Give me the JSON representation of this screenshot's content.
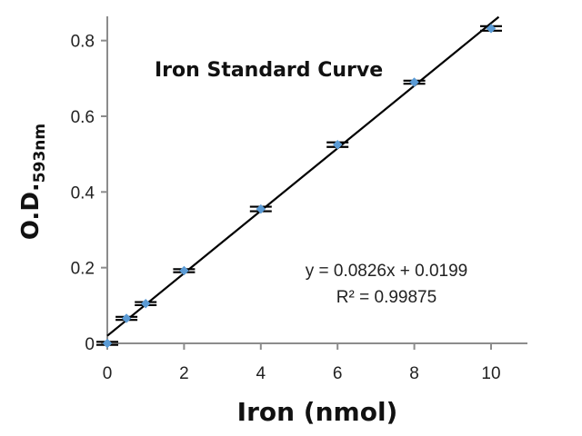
{
  "chart_data": {
    "type": "scatter",
    "title": "Iron Standard Curve",
    "xlabel": "Iron (nmol)",
    "ylabel": "O.D.",
    "ylabel_subscript": "593nm",
    "xlim": [
      0,
      10
    ],
    "ylim": [
      0,
      0.9
    ],
    "xticks": [
      0,
      2,
      4,
      6,
      8,
      10
    ],
    "xtick_labels": [
      "0",
      "2",
      "4",
      "6",
      "8",
      "10"
    ],
    "yticks": [
      0,
      0.2,
      0.4,
      0.6,
      0.8
    ],
    "ytick_labels": [
      "0",
      "0.2",
      "0.4",
      "0.6",
      "0.8"
    ],
    "grid": false,
    "legend": "none",
    "series": [
      {
        "x": [
          0,
          0.5,
          1,
          2,
          4,
          6,
          8,
          10
        ],
        "y": [
          0,
          0.066,
          0.105,
          0.192,
          0.355,
          0.525,
          0.69,
          0.832
        ],
        "err": [
          0.004,
          0.004,
          0.004,
          0.004,
          0.006,
          0.006,
          0.004,
          0.006
        ],
        "color": "#5b9bd5",
        "marker": "diamond"
      }
    ],
    "trendline": {
      "slope": 0.0826,
      "intercept": 0.0199,
      "color": "#000000",
      "equation": "y = 0.0826x + 0.0199",
      "r_squared": "R² = 0.99875"
    }
  }
}
